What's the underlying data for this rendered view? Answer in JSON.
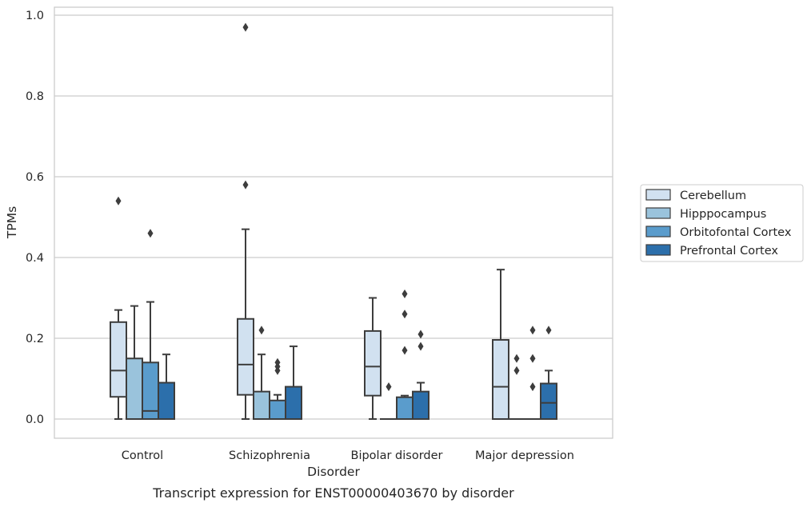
{
  "chart_data": {
    "type": "boxplot",
    "xlabel": "Disorder",
    "ylabel": "TPMs",
    "caption": "Transcript expression for ENST00000403670 by disorder",
    "ylim": [
      -0.046,
      1.02
    ],
    "yticks": [
      "0.0",
      "0.2",
      "0.4",
      "0.6",
      "0.8",
      "1.0"
    ],
    "ytick_values": [
      0,
      0.2,
      0.4,
      0.6,
      0.8,
      1.0
    ],
    "grid": "horizontal",
    "legend_position": "right",
    "categories": [
      "Control",
      "Schizophrenia",
      "Bipolar disorder",
      "Major depression"
    ],
    "series": [
      {
        "name": "Cerebellum",
        "color": "#d1e1f0",
        "boxes": [
          {
            "whislo": 0.0,
            "q1": 0.055,
            "med": 0.12,
            "q3": 0.24,
            "whishi": 0.27,
            "fliers": [
              0.54
            ]
          },
          {
            "whislo": 0.0,
            "q1": 0.06,
            "med": 0.135,
            "q3": 0.248,
            "whishi": 0.47,
            "fliers": [
              0.58,
              0.97
            ]
          },
          {
            "whislo": 0.0,
            "q1": 0.058,
            "med": 0.13,
            "q3": 0.218,
            "whishi": 0.3,
            "fliers": []
          },
          {
            "whislo": 0.0,
            "q1": 0.0,
            "med": 0.08,
            "q3": 0.196,
            "whishi": 0.37,
            "fliers": []
          }
        ]
      },
      {
        "name": "Hipppocampus",
        "color": "#9ac3dc",
        "boxes": [
          {
            "whislo": 0.0,
            "q1": 0.0,
            "med": 0.0,
            "q3": 0.15,
            "whishi": 0.28,
            "fliers": []
          },
          {
            "whislo": 0.0,
            "q1": 0.0,
            "med": 0.0,
            "q3": 0.068,
            "whishi": 0.16,
            "fliers": [
              0.22
            ]
          },
          {
            "whislo": 0.0,
            "q1": 0.0,
            "med": 0.0,
            "q3": 0.0,
            "whishi": 0.0,
            "fliers": [
              0.08
            ]
          },
          {
            "whislo": 0.0,
            "q1": 0.0,
            "med": 0.0,
            "q3": 0.0,
            "whishi": 0.0,
            "fliers": [
              0.12,
              0.15
            ]
          }
        ]
      },
      {
        "name": "Orbitofontal Cortex",
        "color": "#5a9ccc",
        "boxes": [
          {
            "whislo": 0.0,
            "q1": 0.0,
            "med": 0.02,
            "q3": 0.14,
            "whishi": 0.29,
            "fliers": [
              0.46
            ]
          },
          {
            "whislo": 0.0,
            "q1": 0.0,
            "med": 0.0,
            "q3": 0.046,
            "whishi": 0.06,
            "fliers": [
              0.12,
              0.13,
              0.14
            ]
          },
          {
            "whislo": 0.0,
            "q1": 0.0,
            "med": 0.0,
            "q3": 0.054,
            "whishi": 0.058,
            "fliers": [
              0.17,
              0.26,
              0.31
            ]
          },
          {
            "whislo": 0.0,
            "q1": 0.0,
            "med": 0.0,
            "q3": 0.0,
            "whishi": 0.0,
            "fliers": [
              0.08,
              0.15,
              0.22
            ]
          }
        ]
      },
      {
        "name": "Prefrontal Cortex",
        "color": "#2c6fab",
        "boxes": [
          {
            "whislo": 0.0,
            "q1": 0.0,
            "med": 0.0,
            "q3": 0.09,
            "whishi": 0.16,
            "fliers": []
          },
          {
            "whislo": 0.0,
            "q1": 0.0,
            "med": 0.0,
            "q3": 0.08,
            "whishi": 0.18,
            "fliers": []
          },
          {
            "whislo": 0.0,
            "q1": 0.0,
            "med": 0.0,
            "q3": 0.068,
            "whishi": 0.09,
            "fliers": [
              0.18,
              0.21
            ]
          },
          {
            "whislo": 0.0,
            "q1": 0.0,
            "med": 0.04,
            "q3": 0.088,
            "whishi": 0.12,
            "fliers": [
              0.22
            ]
          }
        ]
      }
    ]
  }
}
